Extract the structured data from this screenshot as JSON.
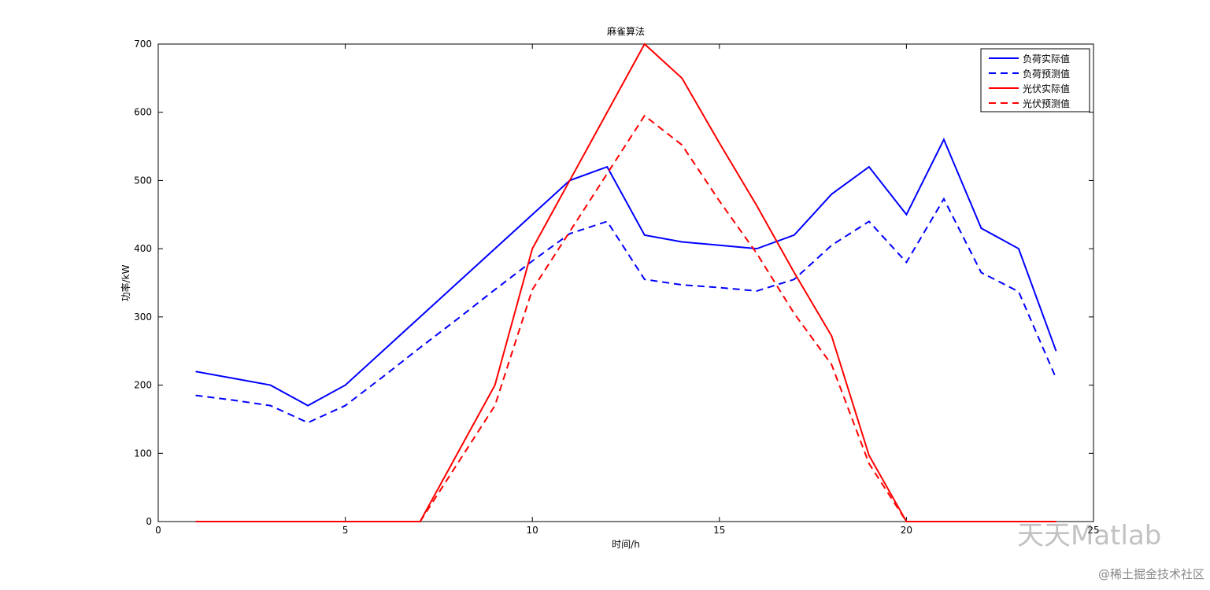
{
  "chart_data": {
    "type": "line",
    "title": "麻雀算法",
    "xlabel": "时间/h",
    "ylabel": "功率/kW",
    "x": [
      1,
      2,
      3,
      4,
      5,
      6,
      7,
      8,
      9,
      10,
      11,
      12,
      13,
      14,
      15,
      16,
      17,
      18,
      19,
      20,
      21,
      22,
      23,
      24
    ],
    "series": [
      {
        "name": "负荷实际值",
        "color": "#0000ff",
        "dash": false,
        "values": [
          220,
          210,
          200,
          170,
          200,
          250,
          300,
          350,
          400,
          450,
          500,
          520,
          420,
          410,
          405,
          400,
          420,
          480,
          520,
          450,
          560,
          430,
          400,
          250
        ]
      },
      {
        "name": "负荷预测值",
        "color": "#0000ff",
        "dash": true,
        "values": [
          185,
          178,
          170,
          145,
          170,
          212,
          255,
          297,
          340,
          382,
          422,
          440,
          355,
          347,
          343,
          338,
          355,
          405,
          440,
          380,
          473,
          365,
          337,
          210
        ]
      },
      {
        "name": "光伏实际值",
        "color": "#ff0000",
        "dash": false,
        "values": [
          0,
          0,
          0,
          0,
          0,
          0,
          0,
          100,
          200,
          400,
          500,
          600,
          700,
          650,
          555,
          463,
          365,
          272,
          97,
          0,
          0,
          0,
          0,
          0
        ]
      },
      {
        "name": "光伏预测值",
        "color": "#ff0000",
        "dash": true,
        "values": [
          0,
          0,
          0,
          0,
          0,
          0,
          0,
          85,
          170,
          340,
          425,
          510,
          595,
          552,
          470,
          393,
          305,
          230,
          85,
          0,
          0,
          0,
          0,
          0
        ]
      }
    ],
    "xlim": [
      0,
      25
    ],
    "xticks": [
      0,
      5,
      10,
      15,
      20,
      25
    ],
    "ylim": [
      0,
      700
    ],
    "yticks": [
      0,
      100,
      200,
      300,
      400,
      500,
      600,
      700
    ],
    "legend": "top-right",
    "grid": false
  },
  "watermark": {
    "brand": "天天Matlab",
    "site": "@稀土掘金技术社区"
  }
}
